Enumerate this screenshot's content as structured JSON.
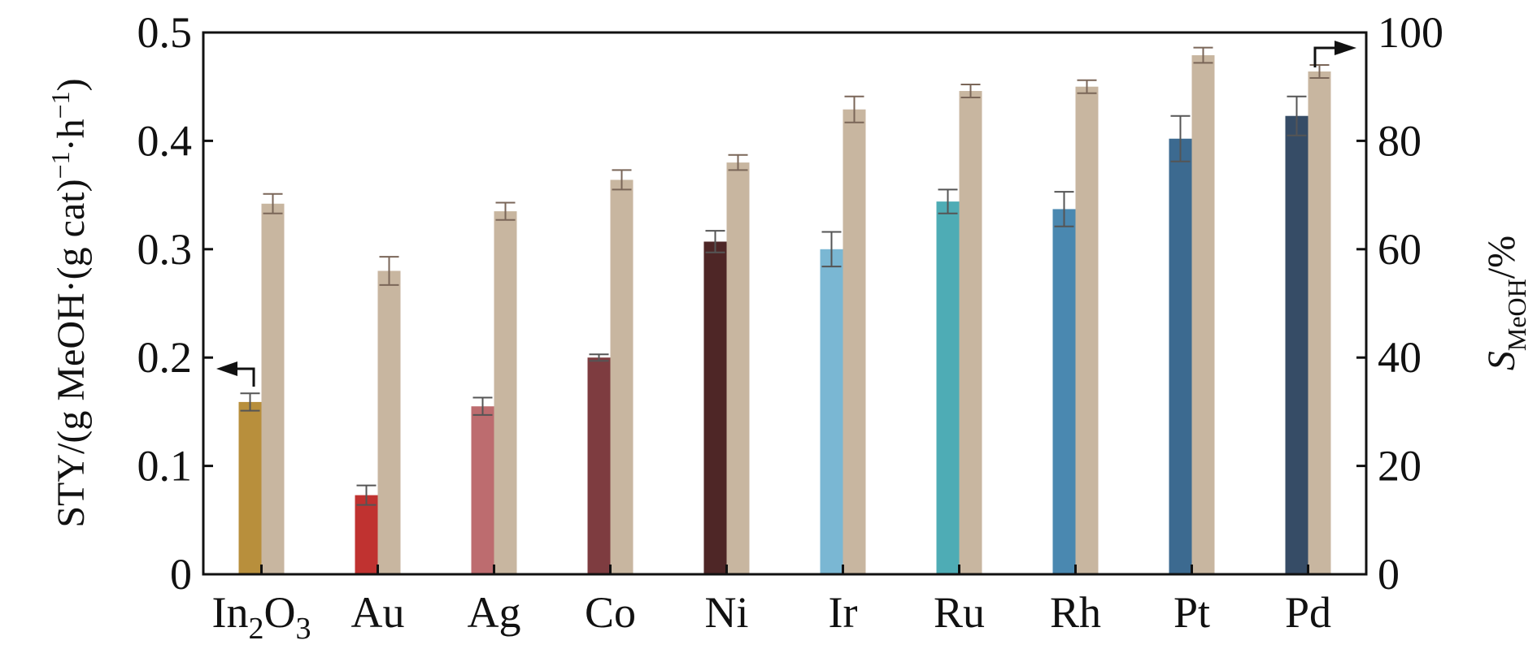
{
  "chart_data": {
    "type": "bar",
    "categories": [
      "In2O3",
      "Au",
      "Ag",
      "Co",
      "Ni",
      "Ir",
      "Ru",
      "Rh",
      "Pt",
      "Pd"
    ],
    "category_labels": [
      {
        "base": "In",
        "sub1": "2",
        "mid": "O",
        "sub2": "3"
      },
      {
        "base": "Au"
      },
      {
        "base": "Ag"
      },
      {
        "base": "Co"
      },
      {
        "base": "Ni"
      },
      {
        "base": "Ir"
      },
      {
        "base": "Ru"
      },
      {
        "base": "Rh"
      },
      {
        "base": "Pt"
      },
      {
        "base": "Pd"
      }
    ],
    "series": [
      {
        "axis": "left",
        "values": [
          0.159,
          0.073,
          0.155,
          0.2,
          0.307,
          0.3,
          0.344,
          0.337,
          0.402,
          0.423
        ],
        "errors": [
          0.008,
          0.009,
          0.008,
          0.003,
          0.01,
          0.016,
          0.011,
          0.016,
          0.021,
          0.018
        ],
        "colors": [
          "#b88f3c",
          "#c03230",
          "#bd6c6f",
          "#7e3c40",
          "#4e2626",
          "#7ab7d3",
          "#4eacb5",
          "#4a88b0",
          "#3c6a90",
          "#364c66"
        ]
      },
      {
        "axis": "right",
        "values": [
          68.4,
          56.0,
          67.0,
          72.8,
          76.0,
          85.8,
          89.2,
          90.0,
          95.8,
          92.8
        ],
        "errors": [
          1.8,
          2.6,
          1.6,
          1.8,
          1.4,
          2.4,
          1.2,
          1.2,
          1.4,
          1.2
        ],
        "colors": [
          "#c8b6a0"
        ]
      }
    ],
    "left_axis": {
      "label_main": "STY/(g MeOH·(g cat)",
      "label_sup1": "−1",
      "label_mid": "·h",
      "label_sup2": "−1",
      "label_end": ")",
      "range": [
        0,
        0.5
      ],
      "ticks": [
        "0",
        "0.1",
        "0.2",
        "0.3",
        "0.4",
        "0.5"
      ],
      "tick_values": [
        0,
        0.1,
        0.2,
        0.3,
        0.4,
        0.5
      ]
    },
    "right_axis": {
      "label_main": "S",
      "label_sub": "MeOH",
      "label_end": "/%",
      "range": [
        0,
        100
      ],
      "ticks": [
        "0",
        "20",
        "40",
        "60",
        "80",
        "100"
      ],
      "tick_values": [
        0,
        20,
        40,
        60,
        80,
        100
      ]
    },
    "annotations": [
      {
        "type": "axis-arrow",
        "points_to": "left",
        "near_category": "In2O3"
      },
      {
        "type": "axis-arrow",
        "points_to": "right",
        "near_category": "Pd"
      }
    ],
    "grid": false,
    "legend": "none"
  }
}
